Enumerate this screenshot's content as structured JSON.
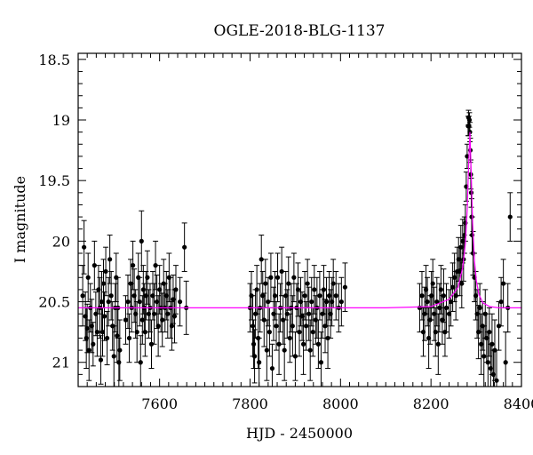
{
  "chart_data": {
    "type": "scatter",
    "title": "OGLE-2018-BLG-1137",
    "xlabel": "HJD - 2450000",
    "ylabel": "I magnitude",
    "xlim": [
      7420,
      8400
    ],
    "ylim": [
      21.2,
      18.45
    ],
    "y_inverted": true,
    "x_ticks": [
      7600,
      7800,
      8000,
      8200,
      8400
    ],
    "y_ticks": [
      18.5,
      19,
      19.5,
      20,
      20.5,
      21
    ],
    "grid": false,
    "legend": "none",
    "colors": {
      "points": "#000000",
      "errorbars": "#000000",
      "model": "#ff00ff"
    },
    "baseline_mag": 20.55,
    "model": {
      "x": [
        7420,
        8100,
        8200,
        8240,
        8260,
        8270,
        8276,
        8280,
        8283,
        8286,
        8289,
        8292,
        8296,
        8300,
        8306,
        8315,
        8330,
        8350,
        8400
      ],
      "y": [
        20.55,
        20.55,
        20.54,
        20.48,
        20.38,
        20.22,
        20.02,
        19.75,
        19.4,
        19.1,
        19.45,
        19.85,
        20.15,
        20.32,
        20.44,
        20.51,
        20.54,
        20.55,
        20.55
      ]
    },
    "points": [
      [
        7430,
        20.45,
        0.25
      ],
      [
        7433,
        20.05,
        0.22
      ],
      [
        7436,
        20.62,
        0.2
      ],
      [
        7438,
        20.8,
        0.25
      ],
      [
        7440,
        20.72,
        0.2
      ],
      [
        7442,
        20.3,
        0.2
      ],
      [
        7444,
        20.9,
        0.25
      ],
      [
        7447,
        20.55,
        0.2
      ],
      [
        7450,
        20.7,
        0.22
      ],
      [
        7453,
        20.85,
        0.18
      ],
      [
        7456,
        20.2,
        0.2
      ],
      [
        7459,
        20.6,
        0.18
      ],
      [
        7462,
        20.75,
        0.2
      ],
      [
        7465,
        20.4,
        0.2
      ],
      [
        7468,
        20.55,
        0.25
      ],
      [
        7470,
        20.98,
        0.2
      ],
      [
        7472,
        20.5,
        0.25
      ],
      [
        7474,
        20.75,
        0.2
      ],
      [
        7476,
        20.35,
        0.2
      ],
      [
        7478,
        20.62,
        0.2
      ],
      [
        7481,
        20.25,
        0.2
      ],
      [
        7484,
        20.8,
        0.22
      ],
      [
        7487,
        20.5,
        0.2
      ],
      [
        7490,
        20.15,
        0.2
      ],
      [
        7493,
        20.45,
        0.2
      ],
      [
        7496,
        20.7,
        0.2
      ],
      [
        7499,
        20.95,
        0.25
      ],
      [
        7502,
        20.55,
        0.2
      ],
      [
        7504,
        20.3,
        0.2
      ],
      [
        7506,
        20.78,
        0.22
      ],
      [
        7508,
        20.55,
        0.25
      ],
      [
        7510,
        21.0,
        0.2
      ],
      [
        7512,
        20.9,
        0.25
      ],
      [
        7525,
        20.65,
        0.2
      ],
      [
        7530,
        20.5,
        0.22
      ],
      [
        7533,
        20.8,
        0.2
      ],
      [
        7536,
        20.35,
        0.2
      ],
      [
        7538,
        20.55,
        0.2
      ],
      [
        7541,
        20.2,
        0.2
      ],
      [
        7544,
        20.45,
        0.22
      ],
      [
        7547,
        20.6,
        0.2
      ],
      [
        7550,
        20.75,
        0.25
      ],
      [
        7553,
        20.3,
        0.2
      ],
      [
        7556,
        20.5,
        0.2
      ],
      [
        7558,
        21.0,
        0.22
      ],
      [
        7560,
        20.0,
        0.25
      ],
      [
        7562,
        20.65,
        0.2
      ],
      [
        7564,
        20.4,
        0.2
      ],
      [
        7566,
        20.55,
        0.2
      ],
      [
        7568,
        20.75,
        0.2
      ],
      [
        7570,
        20.45,
        0.2
      ],
      [
        7573,
        20.3,
        0.22
      ],
      [
        7576,
        20.6,
        0.2
      ],
      [
        7579,
        20.55,
        0.2
      ],
      [
        7582,
        20.85,
        0.2
      ],
      [
        7585,
        20.45,
        0.2
      ],
      [
        7588,
        20.6,
        0.25
      ],
      [
        7591,
        20.2,
        0.2
      ],
      [
        7594,
        20.5,
        0.22
      ],
      [
        7597,
        20.7,
        0.25
      ],
      [
        7600,
        20.4,
        0.2
      ],
      [
        7603,
        20.55,
        0.2
      ],
      [
        7606,
        20.65,
        0.22
      ],
      [
        7609,
        20.35,
        0.2
      ],
      [
        7612,
        20.55,
        0.2
      ],
      [
        7615,
        20.45,
        0.2
      ],
      [
        7618,
        20.6,
        0.2
      ],
      [
        7621,
        20.3,
        0.2
      ],
      [
        7624,
        20.55,
        0.25
      ],
      [
        7627,
        20.7,
        0.2
      ],
      [
        7630,
        20.48,
        0.2
      ],
      [
        7633,
        20.62,
        0.22
      ],
      [
        7636,
        20.4,
        0.2
      ],
      [
        7645,
        20.5,
        0.2
      ],
      [
        7655,
        20.05,
        0.2
      ],
      [
        7659,
        20.55,
        0.22
      ],
      [
        7800,
        20.55,
        0.2
      ],
      [
        7803,
        20.45,
        0.2
      ],
      [
        7806,
        20.7,
        0.25
      ],
      [
        7808,
        20.85,
        0.2
      ],
      [
        7810,
        20.95,
        0.22
      ],
      [
        7812,
        20.6,
        0.2
      ],
      [
        7815,
        20.4,
        0.2
      ],
      [
        7818,
        20.8,
        0.25
      ],
      [
        7820,
        21.0,
        0.2
      ],
      [
        7822,
        20.55,
        0.2
      ],
      [
        7825,
        20.15,
        0.2
      ],
      [
        7828,
        20.45,
        0.2
      ],
      [
        7831,
        20.65,
        0.22
      ],
      [
        7834,
        20.35,
        0.2
      ],
      [
        7837,
        20.9,
        0.25
      ],
      [
        7840,
        20.5,
        0.2
      ],
      [
        7843,
        20.75,
        0.2
      ],
      [
        7846,
        20.3,
        0.2
      ],
      [
        7849,
        21.05,
        0.2
      ],
      [
        7852,
        20.6,
        0.22
      ],
      [
        7855,
        20.45,
        0.2
      ],
      [
        7858,
        20.7,
        0.2
      ],
      [
        7861,
        20.3,
        0.2
      ],
      [
        7864,
        20.85,
        0.25
      ],
      [
        7867,
        20.55,
        0.2
      ],
      [
        7870,
        20.25,
        0.2
      ],
      [
        7873,
        20.65,
        0.2
      ],
      [
        7876,
        20.9,
        0.25
      ],
      [
        7879,
        20.45,
        0.2
      ],
      [
        7882,
        20.6,
        0.2
      ],
      [
        7885,
        20.35,
        0.22
      ],
      [
        7888,
        20.8,
        0.2
      ],
      [
        7891,
        20.55,
        0.2
      ],
      [
        7894,
        20.7,
        0.25
      ],
      [
        7897,
        20.3,
        0.2
      ],
      [
        7900,
        20.95,
        0.2
      ],
      [
        7903,
        20.55,
        0.2
      ],
      [
        7906,
        20.4,
        0.22
      ],
      [
        7909,
        20.75,
        0.2
      ],
      [
        7912,
        20.5,
        0.2
      ],
      [
        7915,
        20.62,
        0.2
      ],
      [
        7918,
        20.85,
        0.25
      ],
      [
        7921,
        20.45,
        0.2
      ],
      [
        7924,
        20.7,
        0.2
      ],
      [
        7927,
        20.35,
        0.2
      ],
      [
        7930,
        20.6,
        0.22
      ],
      [
        7933,
        20.9,
        0.25
      ],
      [
        7936,
        20.5,
        0.2
      ],
      [
        7939,
        20.75,
        0.2
      ],
      [
        7942,
        20.4,
        0.2
      ],
      [
        7945,
        20.65,
        0.2
      ],
      [
        7948,
        20.55,
        0.25
      ],
      [
        7951,
        20.85,
        0.2
      ],
      [
        7954,
        20.45,
        0.2
      ],
      [
        7957,
        21.0,
        0.25
      ],
      [
        7960,
        20.6,
        0.2
      ],
      [
        7963,
        20.4,
        0.2
      ],
      [
        7966,
        20.7,
        0.22
      ],
      [
        7969,
        20.5,
        0.2
      ],
      [
        7972,
        20.8,
        0.25
      ],
      [
        7975,
        20.45,
        0.2
      ],
      [
        7978,
        20.6,
        0.2
      ],
      [
        7981,
        20.5,
        0.2
      ],
      [
        7984,
        20.35,
        0.2
      ],
      [
        7990,
        20.45,
        0.2
      ],
      [
        7996,
        20.55,
        0.2
      ],
      [
        8002,
        20.5,
        0.2
      ],
      [
        8010,
        20.38,
        0.2
      ],
      [
        8175,
        20.55,
        0.2
      ],
      [
        8180,
        20.45,
        0.2
      ],
      [
        8183,
        20.75,
        0.2
      ],
      [
        8186,
        20.6,
        0.22
      ],
      [
        8189,
        20.4,
        0.2
      ],
      [
        8192,
        20.5,
        0.2
      ],
      [
        8195,
        20.8,
        0.25
      ],
      [
        8198,
        20.65,
        0.2
      ],
      [
        8201,
        20.45,
        0.2
      ],
      [
        8204,
        20.35,
        0.2
      ],
      [
        8207,
        20.6,
        0.22
      ],
      [
        8210,
        20.75,
        0.2
      ],
      [
        8213,
        20.5,
        0.2
      ],
      [
        8216,
        20.85,
        0.25
      ],
      [
        8219,
        20.55,
        0.2
      ],
      [
        8222,
        20.4,
        0.2
      ],
      [
        8225,
        20.65,
        0.2
      ],
      [
        8228,
        20.45,
        0.22
      ],
      [
        8231,
        20.75,
        0.2
      ],
      [
        8234,
        20.55,
        0.2
      ],
      [
        8240,
        20.6,
        0.2
      ],
      [
        8244,
        20.5,
        0.2
      ],
      [
        8248,
        20.38,
        0.2
      ],
      [
        8252,
        20.3,
        0.2
      ],
      [
        8255,
        20.45,
        0.2
      ],
      [
        8258,
        20.25,
        0.2
      ],
      [
        8261,
        20.15,
        0.18
      ],
      [
        8264,
        20.25,
        0.2
      ],
      [
        8266,
        20.05,
        0.18
      ],
      [
        8268,
        20.35,
        0.2
      ],
      [
        8270,
        20.0,
        0.18
      ],
      [
        8272,
        20.15,
        0.18
      ],
      [
        8274,
        19.95,
        0.15
      ],
      [
        8276,
        19.85,
        0.15
      ],
      [
        8278,
        19.55,
        0.12
      ],
      [
        8280,
        19.3,
        0.1
      ],
      [
        8282,
        19.05,
        0.08
      ],
      [
        8283,
        18.98,
        0.06
      ],
      [
        8284,
        19.05,
        0.08
      ],
      [
        8285,
        19.0,
        0.06
      ],
      [
        8286,
        19.1,
        0.08
      ],
      [
        8287,
        19.25,
        0.1
      ],
      [
        8288,
        19.45,
        0.12
      ],
      [
        8289,
        19.6,
        0.12
      ],
      [
        8290,
        19.8,
        0.15
      ],
      [
        8291,
        19.95,
        0.15
      ],
      [
        8293,
        20.1,
        0.18
      ],
      [
        8296,
        20.3,
        0.2
      ],
      [
        8299,
        20.45,
        0.2
      ],
      [
        8302,
        20.6,
        0.2
      ],
      [
        8305,
        20.75,
        0.22
      ],
      [
        8308,
        20.55,
        0.2
      ],
      [
        8311,
        20.85,
        0.25
      ],
      [
        8314,
        20.7,
        0.2
      ],
      [
        8317,
        20.95,
        0.25
      ],
      [
        8320,
        20.6,
        0.2
      ],
      [
        8323,
        20.8,
        0.2
      ],
      [
        8326,
        21.0,
        0.25
      ],
      [
        8329,
        20.75,
        0.2
      ],
      [
        8332,
        21.05,
        0.2
      ],
      [
        8335,
        20.85,
        0.25
      ],
      [
        8338,
        21.1,
        0.2
      ],
      [
        8341,
        20.9,
        0.25
      ],
      [
        8345,
        21.15,
        0.25
      ],
      [
        8350,
        20.7,
        0.2
      ],
      [
        8355,
        20.5,
        0.2
      ],
      [
        8360,
        20.35,
        0.2
      ],
      [
        8365,
        21.0,
        0.25
      ],
      [
        8370,
        20.55,
        0.2
      ],
      [
        8375,
        19.8,
        0.2
      ]
    ]
  }
}
